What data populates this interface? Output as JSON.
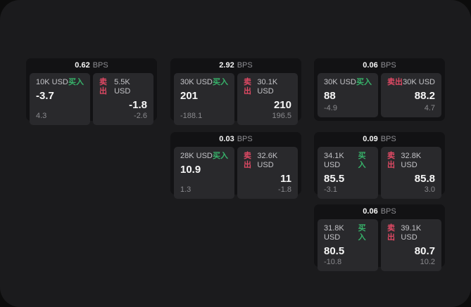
{
  "labels": {
    "bps_unit": "BPS",
    "buy": "买入",
    "sell": "卖出"
  },
  "colors": {
    "buy_green": "#37b26a",
    "sell_red": "#df4964",
    "screen_bg": "#1b1b1d",
    "card_bg": "#121214",
    "panel_bg": "#29292c"
  },
  "cards": [
    {
      "bps": "0.62",
      "buy": {
        "amount": "10K USD",
        "value": "-3.7",
        "delta": "4.3"
      },
      "sell": {
        "amount": "5.5K USD",
        "value": "-1.8",
        "delta": "-2.6"
      }
    },
    {
      "bps": "2.92",
      "buy": {
        "amount": "30K USD",
        "value": "201",
        "delta": "-188.1"
      },
      "sell": {
        "amount": "30.1K USD",
        "value": "210",
        "delta": "196.5"
      }
    },
    {
      "bps": "0.06",
      "buy": {
        "amount": "30K USD",
        "value": "88",
        "delta": "-4.9"
      },
      "sell": {
        "amount": "30K USD",
        "value": "88.2",
        "delta": "4.7"
      }
    },
    {
      "bps": "0.03",
      "buy": {
        "amount": "28K USD",
        "value": "10.9",
        "delta": "1.3"
      },
      "sell": {
        "amount": "32.6K USD",
        "value": "11",
        "delta": "-1.8"
      }
    },
    {
      "bps": "0.09",
      "buy": {
        "amount": "34.1K USD",
        "value": "85.5",
        "delta": "-3.1"
      },
      "sell": {
        "amount": "32.8K USD",
        "value": "85.8",
        "delta": "3.0"
      }
    },
    {
      "bps": "0.06",
      "buy": {
        "amount": "31.8K USD",
        "value": "80.5",
        "delta": "-10.8"
      },
      "sell": {
        "amount": "39.1K USD",
        "value": "80.7",
        "delta": "10.2"
      }
    }
  ]
}
